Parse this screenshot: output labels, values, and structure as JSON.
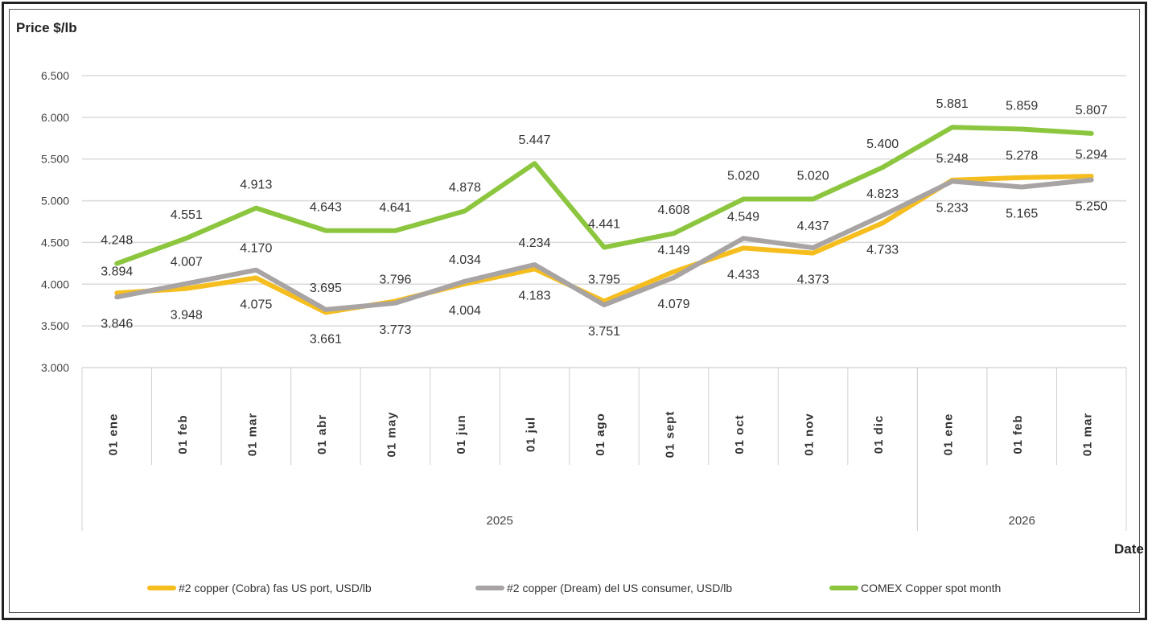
{
  "chart_data": {
    "type": "line",
    "ylabel": "Price $/lb",
    "xlabel": "Date",
    "ylim": [
      3.0,
      6.5
    ],
    "yticks": [
      "3.000",
      "3.500",
      "4.000",
      "4.500",
      "5.000",
      "5.500",
      "6.000",
      "6.500"
    ],
    "ytick_values": [
      3.0,
      3.5,
      4.0,
      4.5,
      5.0,
      5.5,
      6.0,
      6.5
    ],
    "categories": [
      "01 ene",
      "01 feb",
      "01 mar",
      "01 abr",
      "01 may",
      "01 jun",
      "01 jul",
      "01 ago",
      "01 sept",
      "01 oct",
      "01 nov",
      "01 dic",
      "01 ene",
      "01 feb",
      "01 mar"
    ],
    "years": [
      {
        "label": "2025",
        "start": 0,
        "end": 11
      },
      {
        "label": "2026",
        "start": 12,
        "end": 14
      }
    ],
    "legend_position": "bottom",
    "series": [
      {
        "name": "#2 copper (Cobra) fas US port, USD/lb",
        "color": "#f5be1e",
        "values": [
          3.894,
          3.948,
          4.075,
          3.661,
          3.796,
          4.004,
          4.183,
          3.795,
          4.149,
          4.433,
          4.373,
          4.733,
          5.248,
          5.278,
          5.294
        ],
        "labels": [
          "3.894",
          "3.948",
          "4.075",
          "3.661",
          "3.796",
          "4.004",
          "4.183",
          "3.795",
          "4.149",
          "4.433",
          "4.373",
          "4.733",
          "5.248",
          "5.278",
          "5.294"
        ]
      },
      {
        "name": "#2 copper (Dream) del US consumer, USD/lb",
        "color": "#a8a4a4",
        "values": [
          3.846,
          4.007,
          4.17,
          3.695,
          3.773,
          4.034,
          4.234,
          3.751,
          4.079,
          4.549,
          4.437,
          4.823,
          5.233,
          5.165,
          5.25
        ],
        "labels": [
          "3.846",
          "4.007",
          "4.170",
          "3.695",
          "3.773",
          "4.034",
          "4.234",
          "3.751",
          "4.079",
          "4.549",
          "4.437",
          "4.823",
          "5.233",
          "5.165",
          "5.250"
        ]
      },
      {
        "name": "COMEX Copper spot month",
        "color": "#8cc63f",
        "values": [
          4.248,
          4.551,
          4.913,
          4.643,
          4.641,
          4.878,
          5.447,
          4.441,
          4.608,
          5.02,
          5.02,
          5.4,
          5.881,
          5.859,
          5.807
        ],
        "labels": [
          "4.248",
          "4.551",
          "4.913",
          "4.643",
          "4.641",
          "4.878",
          "5.447",
          "4.441",
          "4.608",
          "5.020",
          "5.020",
          "5.400",
          "5.881",
          "5.859",
          "5.807"
        ]
      }
    ]
  }
}
